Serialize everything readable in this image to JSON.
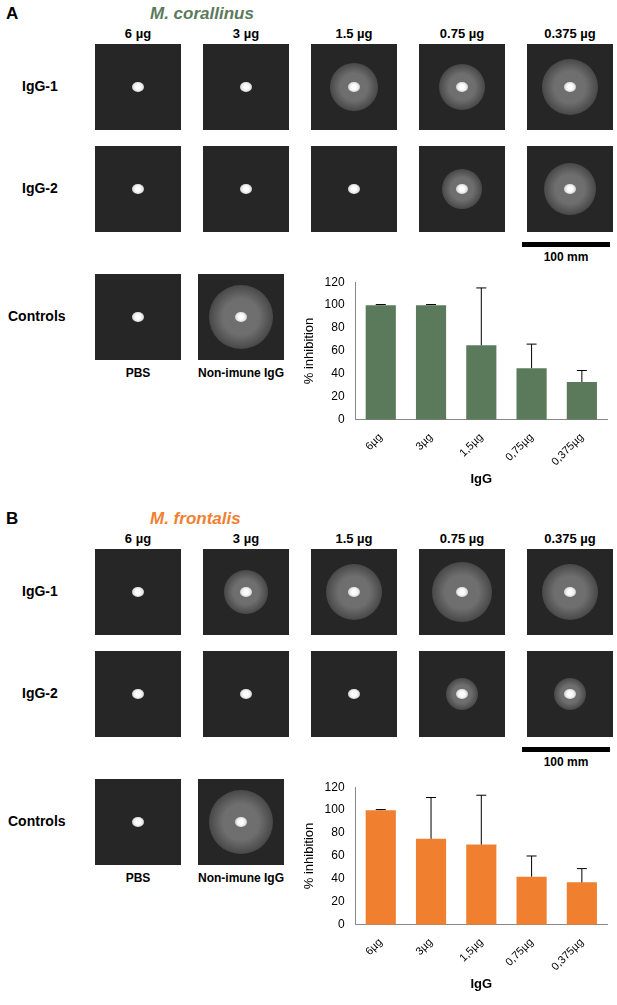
{
  "panels": [
    {
      "label": "A",
      "title": "M. corallinus",
      "doses": [
        "6 µg",
        "3 µg",
        "1.5 µg",
        "0.75 µg",
        "0.375 µg"
      ],
      "rows": [
        "IgG-1",
        "IgG-2"
      ],
      "scale_bar": "100 mm",
      "controls_label": "Controls",
      "controls": [
        "PBS",
        "Non-imune IgG"
      ]
    },
    {
      "label": "B",
      "title": "M. frontalis",
      "doses": [
        "6 µg",
        "3 µg",
        "1.5 µg",
        "0.75 µg",
        "0.375 µg"
      ],
      "rows": [
        "IgG-1",
        "IgG-2"
      ],
      "scale_bar": "100 mm",
      "controls_label": "Controls",
      "controls": [
        "PBS",
        "Non-imune IgG"
      ]
    }
  ],
  "chart_data": [
    {
      "type": "bar",
      "categories": [
        "6µg",
        "3µg",
        "1,5µg",
        "0,75µg",
        "0,375µg"
      ],
      "values": [
        100,
        100,
        65,
        45,
        33
      ],
      "errors": [
        0.5,
        0.5,
        50,
        21,
        10
      ],
      "color": "#5b7a5b",
      "x_label": "IgG",
      "y_label": "% inhibition",
      "ylim": [
        0,
        120
      ],
      "yticks": [
        0,
        20,
        40,
        60,
        80,
        100,
        120
      ],
      "grid": false
    },
    {
      "type": "bar",
      "categories": [
        "6µg",
        "3µg",
        "1,5µg",
        "0,75µg",
        "0,375µg"
      ],
      "values": [
        100,
        75,
        70,
        42,
        37
      ],
      "errors": [
        0.5,
        36,
        43,
        18,
        12
      ],
      "color": "#f08030",
      "x_label": "IgG",
      "y_label": "% inhibition",
      "ylim": [
        0,
        120
      ],
      "yticks": [
        0,
        20,
        40,
        60,
        80,
        100,
        120
      ],
      "grid": false
    }
  ]
}
